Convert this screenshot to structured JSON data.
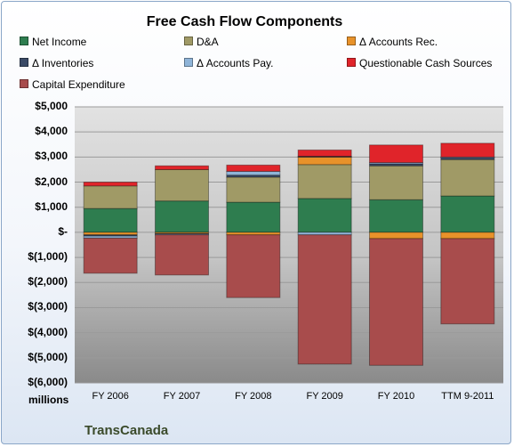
{
  "chart_data": {
    "type": "bar",
    "stacked": true,
    "title": "Free Cash Flow Components",
    "categories": [
      "FY 2006",
      "FY 2007",
      "FY 2008",
      "FY 2009",
      "FY 2010",
      "TTM 9-2011"
    ],
    "ylim": [
      -6000,
      5000
    ],
    "yticks": [
      5000,
      4000,
      3000,
      2000,
      1000,
      0,
      -1000,
      -2000,
      -3000,
      -4000,
      -5000,
      -6000
    ],
    "ytick_labels": [
      "$5,000",
      "$4,000",
      "$3,000",
      "$2,000",
      "$1,000",
      "$-",
      "$(1,000)",
      "$(2,000)",
      "$(3,000)",
      "$(4,000)",
      "$(5,000)",
      "$(6,000)"
    ],
    "units_label": "millions",
    "legend_position": "top",
    "grid": true,
    "series": [
      {
        "name": "Net Income",
        "color": "#2e7d4f",
        "values": [
          950,
          1250,
          1200,
          1350,
          1300,
          1450
        ]
      },
      {
        "name": "D&A",
        "color": "#a09a66",
        "values": [
          900,
          1250,
          1000,
          1350,
          1350,
          1450
        ]
      },
      {
        "name": "Δ Accounts Rec.",
        "color": "#e8922a",
        "values": [
          -100,
          -50,
          -100,
          300,
          -250,
          -250
        ]
      },
      {
        "name": "Δ Inventories",
        "color": "#3a4a66",
        "values": [
          -50,
          -20,
          80,
          30,
          80,
          80
        ]
      },
      {
        "name": "Δ Accounts Pay.",
        "color": "#8fb4d8",
        "values": [
          -80,
          -30,
          150,
          -100,
          50,
          20
        ]
      },
      {
        "name": "Questionable Cash Sources",
        "color": "#e0242a",
        "values": [
          150,
          150,
          250,
          250,
          700,
          550
        ]
      },
      {
        "name": "Capital Expenditure",
        "color": "#a84c4c",
        "values": [
          -1400,
          -1600,
          -2500,
          -5150,
          -5050,
          -3400
        ]
      }
    ]
  },
  "company": "TransCanada",
  "colors": {
    "plot_bg": "#c8c8c8",
    "frame_border": "#8aa6c8"
  }
}
